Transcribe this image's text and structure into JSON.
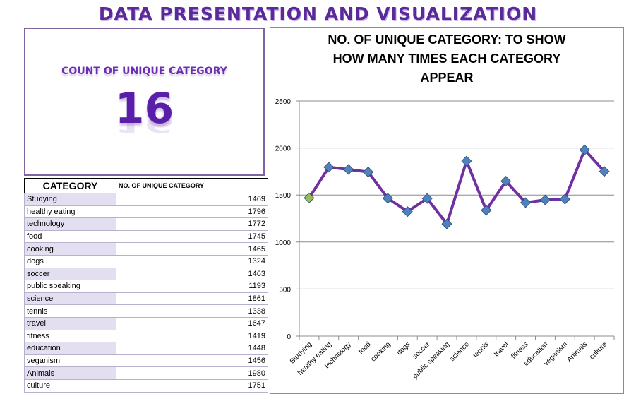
{
  "banner": {
    "title": "DATA PRESENTATION AND VISUALIZATION"
  },
  "kpi": {
    "label": "COUNT OF UNIQUE CATEGORY",
    "value": "16"
  },
  "table": {
    "header_category": "CATEGORY",
    "header_count": "NO. OF UNIQUE CATEGORY",
    "rows": [
      {
        "name": "Studying",
        "count": "1469"
      },
      {
        "name": "healthy eating",
        "count": "1796"
      },
      {
        "name": "technology",
        "count": "1772"
      },
      {
        "name": "food",
        "count": "1745"
      },
      {
        "name": "cooking",
        "count": "1465"
      },
      {
        "name": "dogs",
        "count": "1324"
      },
      {
        "name": "soccer",
        "count": "1463"
      },
      {
        "name": "public speaking",
        "count": "1193"
      },
      {
        "name": "science",
        "count": "1861"
      },
      {
        "name": "tennis",
        "count": "1338"
      },
      {
        "name": "travel",
        "count": "1647"
      },
      {
        "name": "fitness",
        "count": "1419"
      },
      {
        "name": "education",
        "count": "1448"
      },
      {
        "name": "veganism",
        "count": "1456"
      },
      {
        "name": "Animals",
        "count": "1980"
      },
      {
        "name": "culture",
        "count": "1751"
      }
    ]
  },
  "chart_data": {
    "type": "line",
    "title_lines": [
      "NO. OF UNIQUE CATEGORY: TO SHOW",
      "HOW MANY TIMES EACH CATEGORY",
      "APPEAR"
    ],
    "categories": [
      "Studying",
      "healthy eating",
      "technology",
      "food",
      "cooking",
      "dogs",
      "soccer",
      "public speaking",
      "science",
      "tennis",
      "travel",
      "fitness",
      "education",
      "veganism",
      "Animals",
      "culture"
    ],
    "series": [
      {
        "values": [
          1469,
          1796,
          1772,
          1745,
          1465,
          1324,
          1463,
          1193,
          1861,
          1338,
          1647,
          1419,
          1448,
          1456,
          1980,
          1751
        ]
      }
    ],
    "ylim": [
      0,
      2500
    ],
    "yticks": [
      0,
      500,
      1000,
      1500,
      2000,
      2500
    ],
    "grid": true,
    "legend": "none",
    "line_color": "#7030a0",
    "marker_color": "#4f81bd",
    "first_marker_color": "#9bbb59"
  }
}
